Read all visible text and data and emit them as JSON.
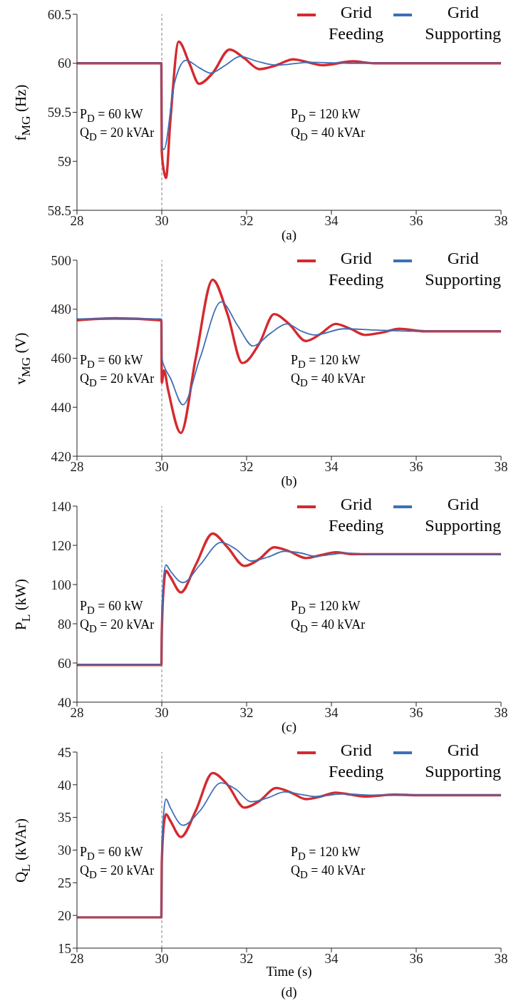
{
  "chart_data": [
    {
      "type": "line",
      "ylabel": "f$_{MG}$ (Hz)",
      "xlim": [
        28,
        38
      ],
      "xticks": [
        28,
        30,
        32,
        34,
        36,
        38
      ],
      "ylim": [
        58.5,
        60.5
      ],
      "yticks": [
        58.5,
        59,
        59.5,
        60,
        60.5
      ],
      "legend": "top right",
      "ref_lines": [
        {
          "axis": "x",
          "value": 30,
          "color": "#808080",
          "line_style": "dashed"
        }
      ],
      "annotations": [
        "P$_{D}$ = 60 kW",
        "Q$_{D}$ = 20 kVAr",
        "P$_{D}$ = 120 kW",
        "Q$_{D}$ = 40 kVAr",
        "(a)"
      ],
      "series": [
        {
          "name": "Grid Feeding",
          "color": "#d42a2f",
          "x": [
            28,
            29,
            29.99,
            30,
            30.05,
            30.1,
            30.2,
            30.4,
            30.65,
            30.88,
            31.2,
            31.6,
            31.95,
            32.3,
            32.7,
            33.1,
            33.45,
            33.8,
            34.5,
            35,
            36,
            37,
            38
          ],
          "values": [
            60,
            60,
            60,
            59.1,
            58.9,
            58.83,
            59.4,
            60.22,
            60.0,
            59.79,
            59.9,
            60.14,
            60.05,
            59.94,
            59.98,
            60.04,
            60.01,
            59.98,
            60.02,
            60,
            60,
            60,
            60
          ]
        },
        {
          "name": "Grid Supporting",
          "color": "#3d6fb6",
          "x": [
            28,
            29,
            29.99,
            30,
            30.05,
            30.3,
            30.57,
            30.9,
            31.15,
            31.5,
            31.85,
            32.25,
            32.7,
            33.5,
            34.5,
            36,
            38
          ],
          "values": [
            60,
            60,
            60,
            59.15,
            59.12,
            59.8,
            60.03,
            59.95,
            59.9,
            59.98,
            60.07,
            60.02,
            59.98,
            60.01,
            60,
            60,
            60
          ]
        }
      ]
    },
    {
      "type": "line",
      "ylabel": "v$_{MG}$ (V)",
      "xlim": [
        28,
        38
      ],
      "xticks": [
        28,
        30,
        32,
        34,
        36,
        38
      ],
      "ylim": [
        420,
        500
      ],
      "yticks": [
        420,
        440,
        460,
        480,
        500
      ],
      "legend": "top right",
      "ref_lines": [
        {
          "axis": "x",
          "value": 30,
          "color": "#808080",
          "line_style": "dashed"
        }
      ],
      "annotations": [
        "P$_{D}$ = 60 kW",
        "Q$_{D}$ = 20 kVAr",
        "P$_{D}$ = 120 kW",
        "Q$_{D}$ = 40 kVAr",
        "(b)"
      ],
      "series": [
        {
          "name": "Grid Feeding",
          "color": "#d42a2f",
          "x": [
            28,
            28.9,
            29.99,
            30,
            30.05,
            30.15,
            30.45,
            30.8,
            31.2,
            31.55,
            31.9,
            32.3,
            32.65,
            33.0,
            33.4,
            33.75,
            34.1,
            34.45,
            34.8,
            35.2,
            35.6,
            36.2,
            37,
            38
          ],
          "values": [
            475.5,
            476.3,
            475.5,
            450,
            455,
            447,
            429.5,
            460,
            492,
            478,
            458,
            466,
            478,
            474,
            467,
            470,
            474,
            472,
            469.5,
            470.5,
            472,
            471,
            471,
            471
          ]
        },
        {
          "name": "Grid Supporting",
          "color": "#3d6fb6",
          "x": [
            28,
            29.99,
            30,
            30.05,
            30.2,
            30.5,
            30.9,
            31.4,
            31.8,
            32.15,
            32.55,
            32.95,
            33.3,
            33.6,
            34.3,
            35,
            36,
            38
          ],
          "values": [
            476,
            476,
            460,
            457,
            452,
            441,
            460,
            483,
            473,
            465,
            470,
            474,
            471,
            469.5,
            472,
            471.5,
            471,
            471
          ]
        }
      ]
    },
    {
      "type": "line",
      "ylabel": "P$_{L}$ (kW)",
      "xlim": [
        28,
        38
      ],
      "xticks": [
        28,
        30,
        32,
        34,
        36,
        38
      ],
      "ylim": [
        40,
        140
      ],
      "yticks": [
        40,
        60,
        80,
        100,
        120,
        140
      ],
      "legend": "top right",
      "ref_lines": [
        {
          "axis": "x",
          "value": 30,
          "color": "#808080",
          "line_style": "dashed"
        }
      ],
      "annotations": [
        "P$_{D}$ = 60 kW",
        "Q$_{D}$ = 20 kVAr",
        "P$_{D}$ = 120 kW",
        "Q$_{D}$ = 40 kVAr",
        "(c)"
      ],
      "series": [
        {
          "name": "Grid Feeding",
          "color": "#d42a2f",
          "x": [
            28,
            29.99,
            30,
            30.05,
            30.1,
            30.2,
            30.45,
            30.8,
            31.2,
            31.55,
            31.95,
            32.3,
            32.65,
            33.0,
            33.4,
            33.75,
            34.1,
            34.5,
            35,
            36,
            38
          ],
          "values": [
            59,
            59,
            75,
            100,
            107,
            104,
            96,
            110,
            126,
            119,
            109.5,
            113,
            119,
            117,
            113.5,
            115,
            116.5,
            115.5,
            115.5,
            115.5,
            115.5
          ]
        },
        {
          "name": "Grid Supporting",
          "color": "#3d6fb6",
          "x": [
            28,
            29.99,
            30,
            30.05,
            30.1,
            30.2,
            30.5,
            30.9,
            31.4,
            31.75,
            32.1,
            32.5,
            32.9,
            33.3,
            33.6,
            34.3,
            35,
            36,
            38
          ],
          "values": [
            59,
            59,
            80,
            105,
            110,
            107,
            101,
            110,
            121.5,
            118,
            112,
            114,
            117,
            116,
            114.5,
            116,
            115.5,
            115.5,
            115.5
          ]
        }
      ]
    },
    {
      "type": "line",
      "ylabel": "Q$_{L}$ (kVAr)",
      "xlabel": "Time (s)",
      "xlim": [
        28,
        38
      ],
      "xticks": [
        28,
        30,
        32,
        34,
        36,
        38
      ],
      "ylim": [
        15,
        45
      ],
      "yticks": [
        15,
        20,
        25,
        30,
        35,
        40,
        45
      ],
      "legend": "top right",
      "ref_lines": [
        {
          "axis": "x",
          "value": 30,
          "color": "#808080",
          "line_style": "dashed"
        }
      ],
      "annotations": [
        "P$_{D}$ = 60 kW",
        "Q$_{D}$ = 20 kVAr",
        "P$_{D}$ = 120 kW",
        "Q$_{D}$ = 40 kVAr",
        "(d)"
      ],
      "series": [
        {
          "name": "Grid Feeding",
          "color": "#d42a2f",
          "x": [
            28,
            29.99,
            30,
            30.05,
            30.1,
            30.2,
            30.45,
            30.8,
            31.2,
            31.55,
            31.95,
            32.3,
            32.7,
            33.05,
            33.4,
            33.75,
            34.1,
            34.45,
            34.8,
            35.5,
            36,
            38
          ],
          "values": [
            19.7,
            19.7,
            28,
            34,
            35.5,
            34.5,
            32,
            36,
            41.8,
            40,
            36.5,
            37.5,
            39.5,
            38.8,
            37.8,
            38.2,
            38.8,
            38.5,
            38.2,
            38.5,
            38.4,
            38.4
          ]
        },
        {
          "name": "Grid Supporting",
          "color": "#3d6fb6",
          "x": [
            28,
            29.99,
            30,
            30.05,
            30.1,
            30.2,
            30.5,
            30.9,
            31.4,
            31.75,
            32.1,
            32.5,
            32.9,
            33.3,
            33.6,
            34.3,
            35,
            36,
            38
          ],
          "values": [
            19.7,
            19.7,
            30,
            36,
            37.8,
            36.5,
            33.8,
            36,
            40.3,
            39.3,
            37.4,
            38,
            38.9,
            38.5,
            38.2,
            38.6,
            38.4,
            38.4,
            38.4
          ]
        }
      ]
    }
  ]
}
